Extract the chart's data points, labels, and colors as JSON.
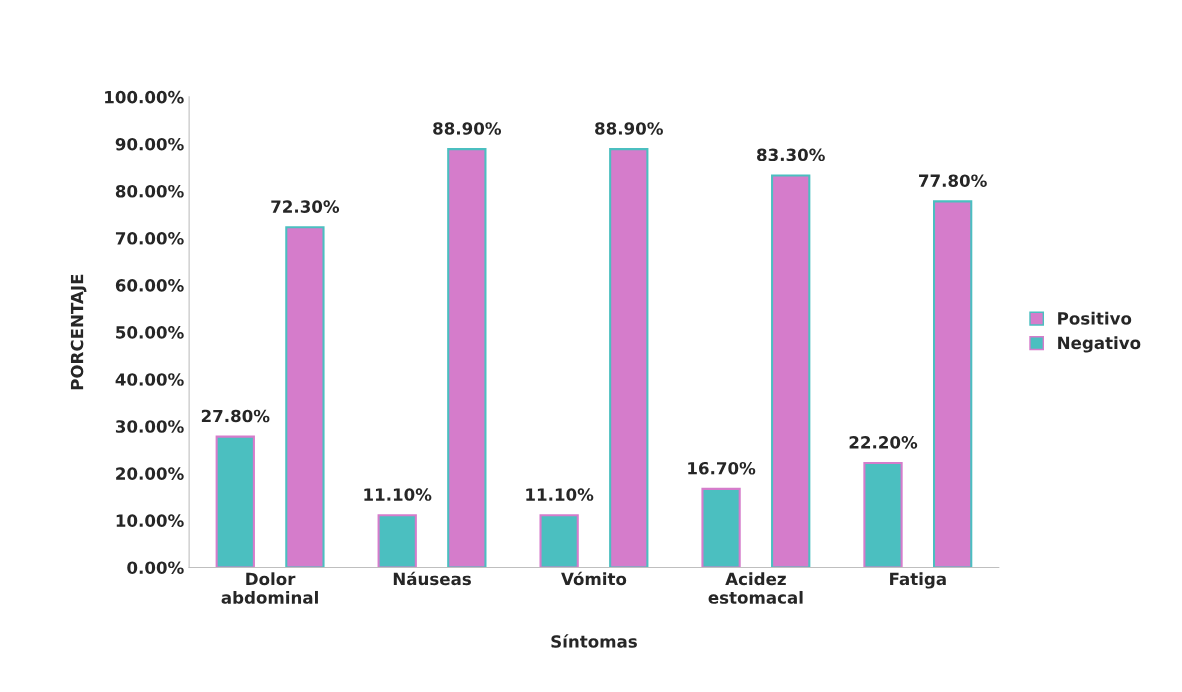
{
  "chart_data": {
    "type": "bar",
    "xlabel": "Síntomas",
    "ylabel": "PORCENTAJE",
    "categories": [
      "Dolor\nabdominal",
      "Náuseas",
      "Vómito",
      "Acidez\nestomacal",
      "Fatiga"
    ],
    "series": [
      {
        "name": "Negativo",
        "color": "#4bbfc0",
        "values": [
          27.8,
          11.1,
          11.1,
          16.7,
          22.2
        ],
        "value_labels": [
          "27.80%",
          "11.10%",
          "11.10%",
          "16.70%",
          "22.20%"
        ]
      },
      {
        "name": "Positivo",
        "color": "#d57ccb",
        "values": [
          72.3,
          88.9,
          88.9,
          83.3,
          77.8
        ],
        "value_labels": [
          "72.30%",
          "88.90%",
          "88.90%",
          "83.30%",
          "77.80%"
        ]
      }
    ],
    "ylim": [
      0,
      100
    ],
    "yticks": [
      {
        "value": 0,
        "label": "0.00%"
      },
      {
        "value": 10,
        "label": "10.00%"
      },
      {
        "value": 20,
        "label": "20.00%"
      },
      {
        "value": 30,
        "label": "30.00%"
      },
      {
        "value": 40,
        "label": "40.00%"
      },
      {
        "value": 50,
        "label": "50.00%"
      },
      {
        "value": 60,
        "label": "60.00%"
      },
      {
        "value": 70,
        "label": "70.00%"
      },
      {
        "value": 80,
        "label": "80.00%"
      },
      {
        "value": 90,
        "label": "90.00%"
      },
      {
        "value": 100,
        "label": "100.00%"
      }
    ],
    "grid": false,
    "legend": "right"
  }
}
